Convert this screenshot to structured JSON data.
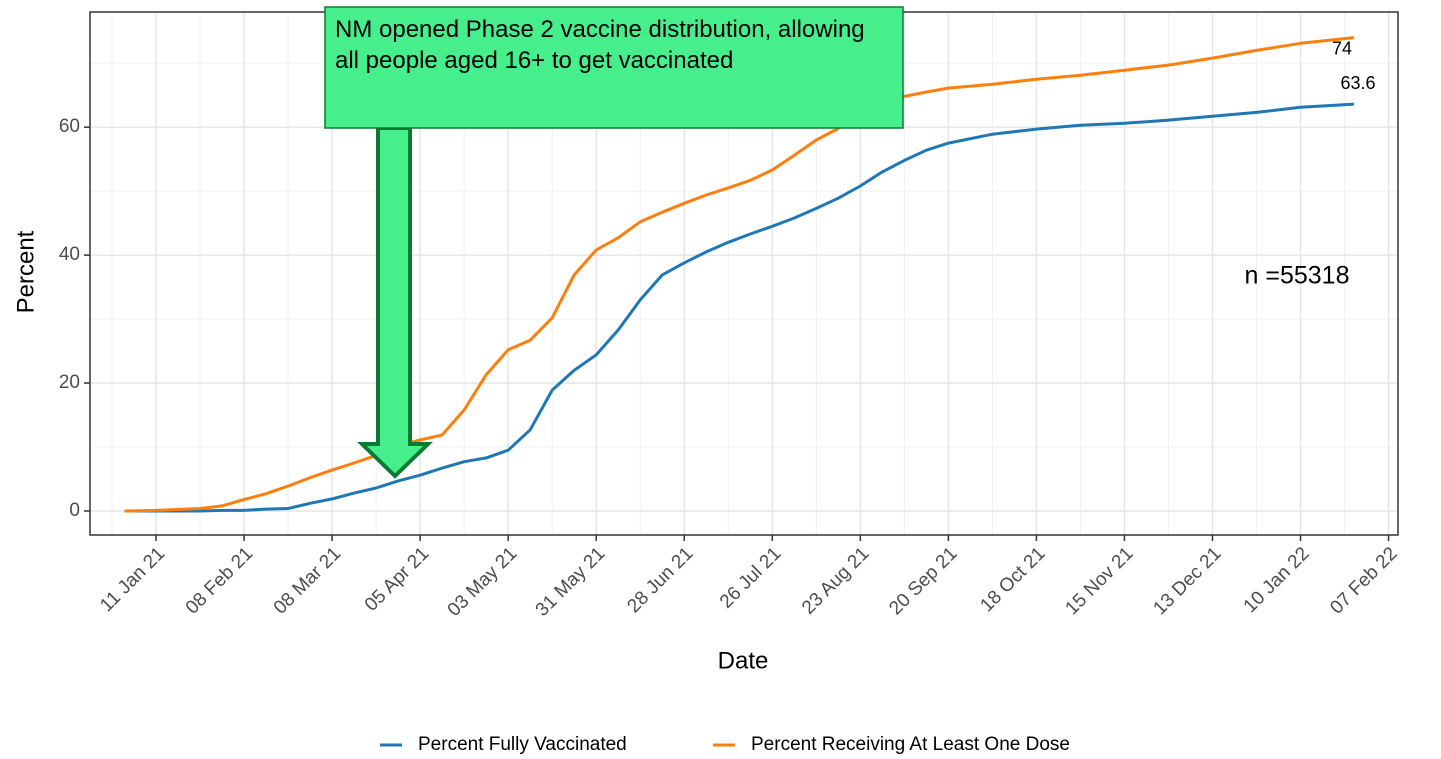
{
  "chart_data": {
    "type": "line",
    "x_label": "Date",
    "y_label": "Percent",
    "annotation": "NM opened Phase 2 vaccine distribution, allowing all people aged 16+ to get vaccinated",
    "note": "n =55318",
    "x": [
      "2021-01-01",
      "2021-01-11",
      "2021-01-25",
      "2021-02-01",
      "2021-02-08",
      "2021-02-15",
      "2021-02-22",
      "2021-03-01",
      "2021-03-08",
      "2021-03-15",
      "2021-03-22",
      "2021-03-29",
      "2021-04-05",
      "2021-04-12",
      "2021-04-19",
      "2021-04-26",
      "2021-05-03",
      "2021-05-10",
      "2021-05-17",
      "2021-05-24",
      "2021-05-31",
      "2021-06-07",
      "2021-06-14",
      "2021-06-21",
      "2021-06-28",
      "2021-07-05",
      "2021-07-12",
      "2021-07-19",
      "2021-07-26",
      "2021-08-02",
      "2021-08-09",
      "2021-08-16",
      "2021-08-23",
      "2021-08-30",
      "2021-09-06",
      "2021-09-13",
      "2021-09-20",
      "2021-10-04",
      "2021-10-18",
      "2021-11-01",
      "2021-11-15",
      "2021-11-29",
      "2021-12-13",
      "2021-12-27",
      "2022-01-10",
      "2022-01-27"
    ],
    "series": [
      {
        "name": "Percent Fully Vaccinated",
        "color": "#1f77b4",
        "values": [
          0,
          0,
          0,
          0.1,
          0.1,
          0.3,
          0.4,
          1.2,
          1.9,
          2.8,
          3.6,
          4.7,
          5.6,
          6.7,
          7.7,
          8.3,
          9.5,
          12.7,
          18.9,
          22,
          24.4,
          28.3,
          33,
          36.9,
          38.8,
          40.5,
          42,
          43.3,
          44.5,
          45.8,
          47.3,
          48.9,
          50.8,
          53,
          54.8,
          56.4,
          57.5,
          58.9,
          59.7,
          60.3,
          60.6,
          61.1,
          61.7,
          62.3,
          63.1,
          63.6
        ]
      },
      {
        "name": "Percent Receiving At Least One Dose",
        "color": "#ff7f0e",
        "values": [
          0,
          0.1,
          0.4,
          0.8,
          1.8,
          2.7,
          3.9,
          5.2,
          6.4,
          7.5,
          8.7,
          10.2,
          11.1,
          11.9,
          15.8,
          21.3,
          25.2,
          26.7,
          30.2,
          36.9,
          40.8,
          42.7,
          45.2,
          46.7,
          48.1,
          49.4,
          50.5,
          51.7,
          53.3,
          55.6,
          58,
          59.8,
          61.9,
          64.2,
          64.8,
          65.5,
          66.1,
          66.7,
          67.5,
          68.1,
          68.9,
          69.7,
          70.8,
          72,
          73.1,
          74
        ]
      }
    ],
    "xlim": [
      "2020-12-21",
      "2022-02-10"
    ],
    "xticks": [
      {
        "value": "2021-01-11",
        "label": "11 Jan 21"
      },
      {
        "value": "2021-02-08",
        "label": "08 Feb 21"
      },
      {
        "value": "2021-03-08",
        "label": "08 Mar 21"
      },
      {
        "value": "2021-04-05",
        "label": "05 Apr 21"
      },
      {
        "value": "2021-05-03",
        "label": "03 May 21"
      },
      {
        "value": "2021-05-31",
        "label": "31 May 21"
      },
      {
        "value": "2021-06-28",
        "label": "28 Jun 21"
      },
      {
        "value": "2021-07-26",
        "label": "26 Jul 21"
      },
      {
        "value": "2021-08-23",
        "label": "23 Aug 21"
      },
      {
        "value": "2021-09-20",
        "label": "20 Sep 21"
      },
      {
        "value": "2021-10-18",
        "label": "18 Oct 21"
      },
      {
        "value": "2021-11-15",
        "label": "15 Nov 21"
      },
      {
        "value": "2021-12-13",
        "label": "13 Dec 21"
      },
      {
        "value": "2022-01-10",
        "label": "10 Jan 22"
      },
      {
        "value": "2022-02-07",
        "label": "07 Feb 22"
      }
    ],
    "ylim": [
      -3.75,
      78
    ],
    "yticks": [
      0,
      20,
      40,
      60
    ],
    "grid": true,
    "legend": "bottom"
  }
}
